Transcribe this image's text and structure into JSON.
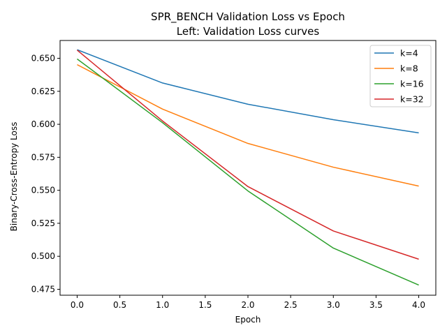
{
  "chart_data": {
    "type": "line",
    "title": "SPR_BENCH Validation Loss vs Epoch",
    "subtitle": "Left: Validation Loss curves",
    "xlabel": "Epoch",
    "ylabel": "Binary-Cross-Entropy Loss",
    "xlim": [
      -0.2,
      4.2
    ],
    "ylim": [
      0.4705,
      0.6635
    ],
    "x_ticks": [
      "0.0",
      "0.5",
      "1.0",
      "1.5",
      "2.0",
      "2.5",
      "3.0",
      "3.5",
      "4.0"
    ],
    "y_ticks": [
      "0.475",
      "0.500",
      "0.525",
      "0.550",
      "0.575",
      "0.600",
      "0.625",
      "0.650"
    ],
    "grid": false,
    "legend_position": "top-right",
    "x": [
      0,
      1,
      2,
      3,
      4
    ],
    "series": [
      {
        "name": "k=4",
        "color": "#1f77b4",
        "values": [
          0.6565,
          0.6313,
          0.6152,
          0.6035,
          0.5935
        ]
      },
      {
        "name": "k=8",
        "color": "#ff7f0e",
        "values": [
          0.6452,
          0.6115,
          0.5855,
          0.5675,
          0.5532
        ]
      },
      {
        "name": "k=16",
        "color": "#2ca02c",
        "values": [
          0.6495,
          0.6012,
          0.5495,
          0.5062,
          0.4782
        ]
      },
      {
        "name": "k=32",
        "color": "#d62728",
        "values": [
          0.6562,
          0.6025,
          0.5528,
          0.5192,
          0.4978
        ]
      }
    ]
  }
}
